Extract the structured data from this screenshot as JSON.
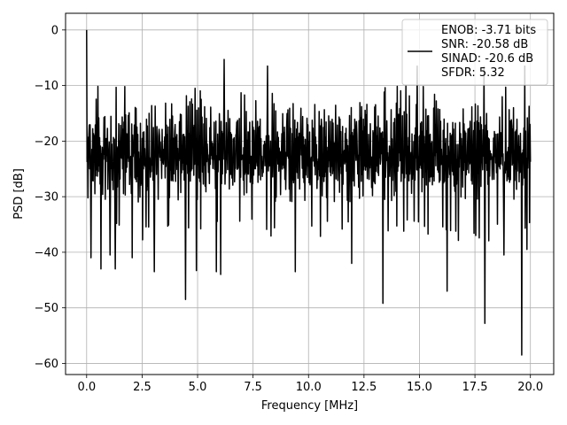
{
  "chart_data": {
    "type": "line",
    "title": "",
    "xlabel": "Frequency [MHz]",
    "ylabel": "PSD [dB]",
    "xlim": [
      -0.95,
      21.05
    ],
    "ylim": [
      -62.0,
      3.0
    ],
    "xticks": [
      0.0,
      2.5,
      5.0,
      7.5,
      10.0,
      12.5,
      15.0,
      17.5,
      20.0
    ],
    "xtick_labels": [
      "0.0",
      "2.5",
      "5.0",
      "7.5",
      "10.0",
      "12.5",
      "15.0",
      "17.5",
      "20.0"
    ],
    "yticks": [
      0,
      -10,
      -20,
      -30,
      -40,
      -50,
      -60
    ],
    "ytick_labels": [
      "0",
      "−10",
      "−20",
      "−30",
      "−40",
      "−50",
      "−60"
    ],
    "grid": true,
    "legend_location": "upper right",
    "line_color": "#000000",
    "legend": {
      "lines": [
        "ENOB: -3.71 bits",
        "SNR: -20.58 dB",
        "SINAD: -20.6 dB",
        "SFDR: 5.32"
      ]
    },
    "series": [
      {
        "x_range": [
          0.0,
          20.0
        ],
        "points": 1024,
        "noise_floor_db": [
          -31,
          -13
        ],
        "peaks": [
          {
            "x": 0.0,
            "y": 0.0
          },
          {
            "x": 6.2,
            "y": -5.3
          },
          {
            "x": 8.15,
            "y": -6.5
          },
          {
            "x": 14.9,
            "y": -6.5
          },
          {
            "x": 17.9,
            "y": -6.6
          },
          {
            "x": 19.75,
            "y": -6.5
          }
        ],
        "dips": [
          {
            "x": 0.2,
            "y": -41
          },
          {
            "x": 0.65,
            "y": -43
          },
          {
            "x": 1.3,
            "y": -43
          },
          {
            "x": 1.05,
            "y": -40.5
          },
          {
            "x": 2.05,
            "y": -41
          },
          {
            "x": 3.05,
            "y": -43.5
          },
          {
            "x": 4.45,
            "y": -48.5
          },
          {
            "x": 4.95,
            "y": -43.3
          },
          {
            "x": 5.85,
            "y": -43.5
          },
          {
            "x": 6.05,
            "y": -44
          },
          {
            "x": 9.4,
            "y": -43.5
          },
          {
            "x": 11.95,
            "y": -42
          },
          {
            "x": 13.35,
            "y": -49.2
          },
          {
            "x": 16.25,
            "y": -47
          },
          {
            "x": 17.95,
            "y": -52.8
          },
          {
            "x": 18.8,
            "y": -40.5
          },
          {
            "x": 19.6,
            "y": -58.5
          },
          {
            "x": 19.85,
            "y": -39.5
          }
        ]
      }
    ]
  }
}
